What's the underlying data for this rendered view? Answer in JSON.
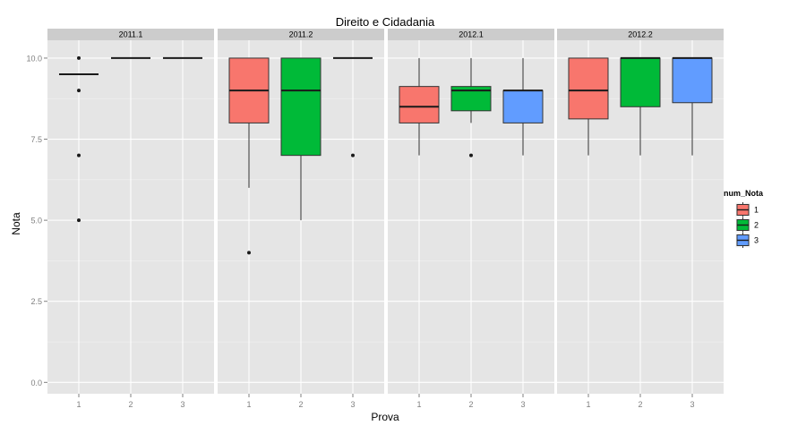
{
  "chart_data": {
    "type": "boxplot",
    "title": "Direito e Cidadania",
    "xlabel": "Prova",
    "ylabel": "Nota",
    "ylim": [
      -0.35,
      10.55
    ],
    "yticks": [
      0,
      2.5,
      5,
      7.5,
      10
    ],
    "ytick_labels": [
      "0.0",
      "2.5",
      "5.0",
      "7.5",
      "10.0"
    ],
    "categories": [
      "1",
      "2",
      "3"
    ],
    "grid": true,
    "legend": {
      "title": "num_Nota",
      "position": "right",
      "entries": [
        {
          "label": "1",
          "color": "#F8766D"
        },
        {
          "label": "2",
          "color": "#00BA38"
        },
        {
          "label": "3",
          "color": "#619CFF"
        }
      ]
    },
    "facets": [
      {
        "label": "2011.1",
        "boxes": [
          {
            "x": "1",
            "group": "1",
            "q1": 9.5,
            "median": 9.5,
            "q3": 9.5,
            "whisker_low": 9.5,
            "whisker_high": 9.5,
            "outliers": [
              10,
              9,
              7,
              5
            ]
          },
          {
            "x": "2",
            "group": "2",
            "q1": 10,
            "median": 10,
            "q3": 10,
            "whisker_low": 10,
            "whisker_high": 10,
            "outliers": []
          },
          {
            "x": "3",
            "group": "3",
            "q1": 10,
            "median": 10,
            "q3": 10,
            "whisker_low": 10,
            "whisker_high": 10,
            "outliers": []
          }
        ]
      },
      {
        "label": "2011.2",
        "boxes": [
          {
            "x": "1",
            "group": "1",
            "q1": 8,
            "median": 9,
            "q3": 10,
            "whisker_low": 6,
            "whisker_high": 10,
            "outliers": [
              4
            ]
          },
          {
            "x": "2",
            "group": "2",
            "q1": 7,
            "median": 9,
            "q3": 10,
            "whisker_low": 5,
            "whisker_high": 10,
            "outliers": []
          },
          {
            "x": "3",
            "group": "3",
            "q1": 10,
            "median": 10,
            "q3": 10,
            "whisker_low": 10,
            "whisker_high": 10,
            "outliers": [
              7
            ]
          }
        ]
      },
      {
        "label": "2012.1",
        "boxes": [
          {
            "x": "1",
            "group": "1",
            "q1": 8,
            "median": 8.5,
            "q3": 9.125,
            "whisker_low": 7,
            "whisker_high": 10,
            "outliers": []
          },
          {
            "x": "2",
            "group": "2",
            "q1": 8.375,
            "median": 9,
            "q3": 9.125,
            "whisker_low": 8,
            "whisker_high": 10,
            "outliers": [
              7
            ]
          },
          {
            "x": "3",
            "group": "3",
            "q1": 8,
            "median": 9,
            "q3": 9,
            "whisker_low": 7,
            "whisker_high": 10,
            "outliers": []
          }
        ]
      },
      {
        "label": "2012.2",
        "boxes": [
          {
            "x": "1",
            "group": "1",
            "q1": 8.125,
            "median": 9,
            "q3": 10,
            "whisker_low": 7,
            "whisker_high": 10,
            "outliers": []
          },
          {
            "x": "2",
            "group": "2",
            "q1": 8.5,
            "median": 10,
            "q3": 10,
            "whisker_low": 7,
            "whisker_high": 10,
            "outliers": []
          },
          {
            "x": "3",
            "group": "3",
            "q1": 8.625,
            "median": 10,
            "q3": 10,
            "whisker_low": 7,
            "whisker_high": 10,
            "outliers": []
          }
        ]
      }
    ]
  },
  "colors": {
    "panel_bg": "#E5E5E5",
    "strip_bg": "#CCCCCC",
    "grid_major": "#FFFFFF",
    "grid_minor": "#F2F2F2",
    "axis_text": "#7F7F7F",
    "text": "#000000"
  }
}
